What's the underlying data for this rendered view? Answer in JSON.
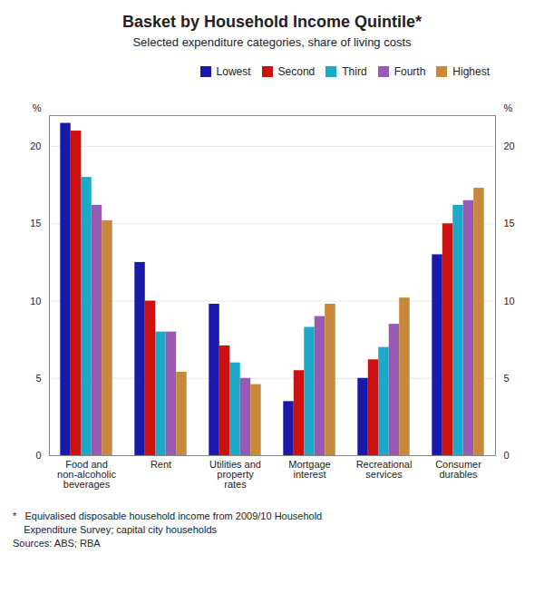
{
  "chart_data": {
    "type": "bar",
    "title": "Basket by Household Income Quintile*",
    "subtitle": "Selected expenditure categories, share of living costs",
    "ylabel": "%",
    "y2label": "%",
    "categories": [
      "Food and\nnon-alcoholic\nbeverages",
      "Rent",
      "Utilities and\nproperty\nrates",
      "Mortgage\ninterest",
      "Recreational\nservices",
      "Consumer\ndurables"
    ],
    "series": [
      {
        "name": "Lowest",
        "color": "#1a1aaa",
        "values": [
          21.5,
          12.5,
          9.8,
          3.5,
          5.0,
          13.0
        ]
      },
      {
        "name": "Second",
        "color": "#cc1111",
        "values": [
          21.0,
          10.0,
          7.1,
          5.5,
          6.2,
          15.0
        ]
      },
      {
        "name": "Third",
        "color": "#1ca8c8",
        "values": [
          18.0,
          8.0,
          6.0,
          8.3,
          7.0,
          16.2
        ]
      },
      {
        "name": "Fourth",
        "color": "#9b59b6",
        "values": [
          16.2,
          8.0,
          5.0,
          9.0,
          8.5,
          16.5
        ]
      },
      {
        "name": "Highest",
        "color": "#c8883a",
        "values": [
          15.2,
          5.4,
          4.6,
          9.8,
          10.2,
          17.3
        ]
      }
    ],
    "ylim": [
      0,
      22
    ],
    "yticks": [
      0,
      5,
      10,
      15,
      20
    ],
    "grid": true,
    "legend": "upper right",
    "annotations": [
      "*   Equivalised disposable household income from 2009/10 Household",
      "    Expenditure Survey; capital city households",
      "Sources: ABS; RBA"
    ]
  }
}
